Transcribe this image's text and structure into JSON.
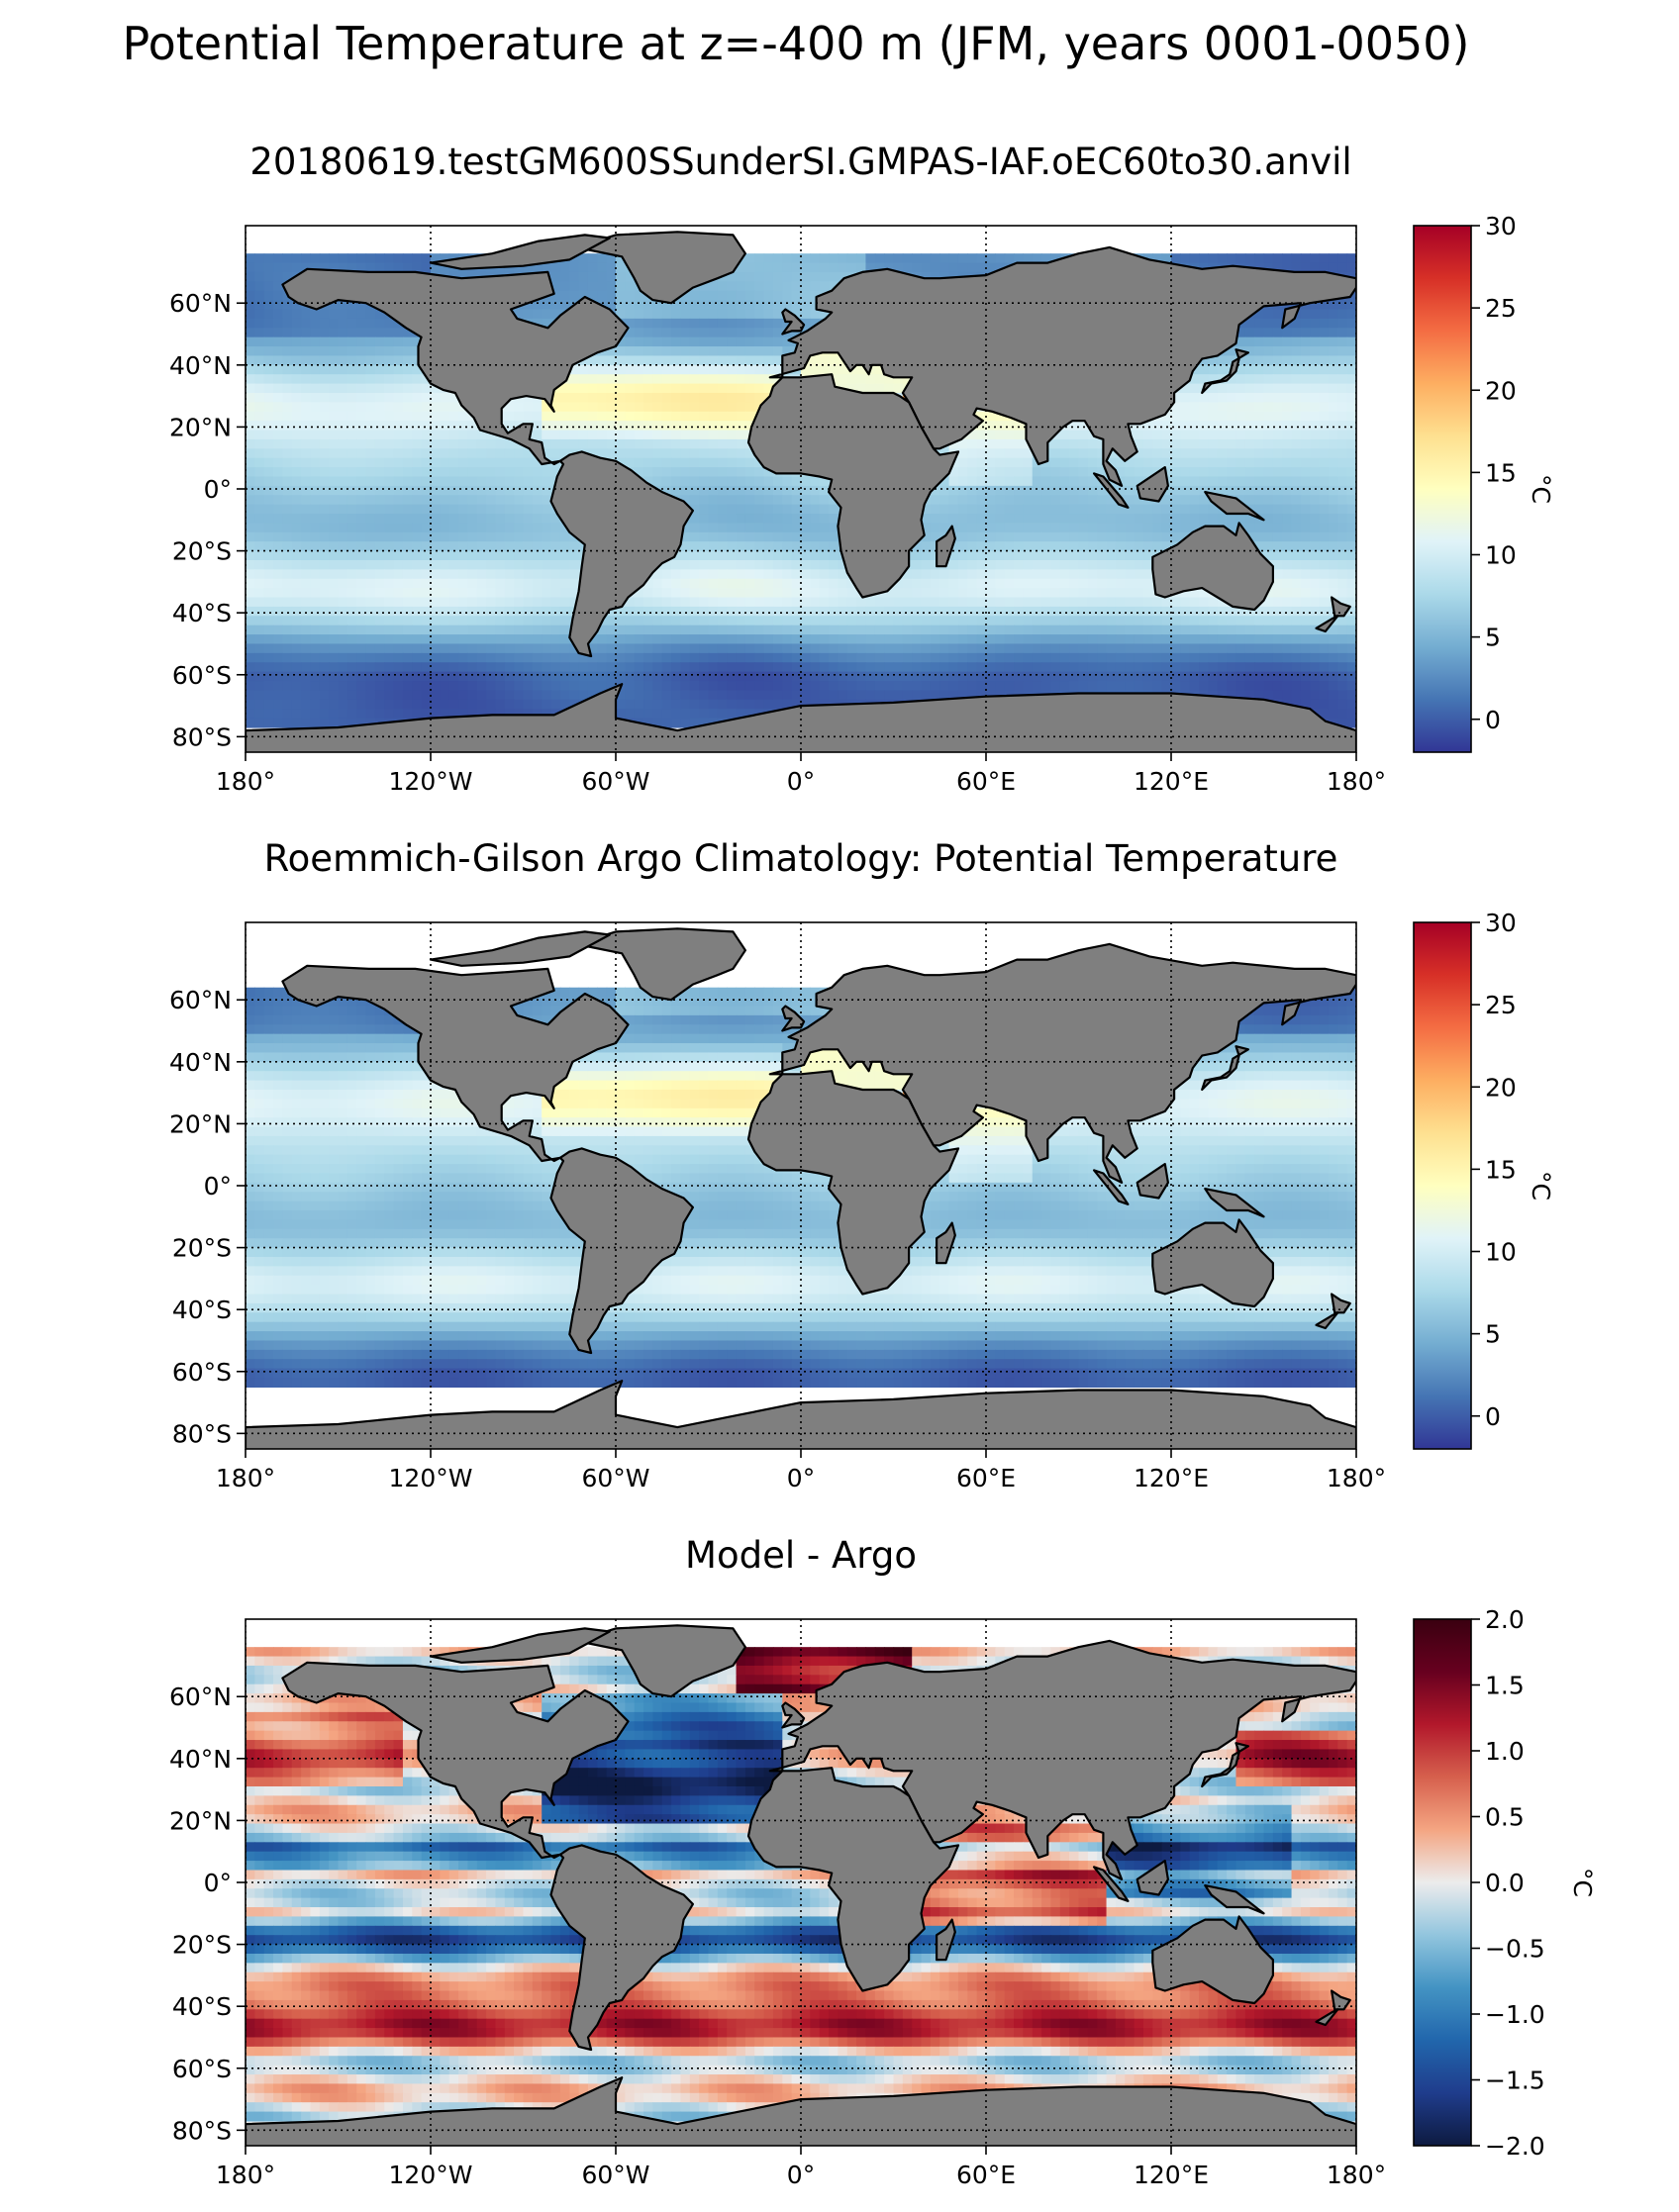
{
  "figure": {
    "suptitle": "Potential Temperature at z=-400 m (JFM, years 0001-0050)"
  },
  "colors": {
    "land": "#7f7f7f",
    "nodata": "#ffffff",
    "grid": "#000000",
    "coast": "#000000",
    "rdylbu_r": [
      "#313695",
      "#4575b4",
      "#74add1",
      "#abd9e9",
      "#e0f3f8",
      "#ffffbf",
      "#fee090",
      "#fdae61",
      "#f46d43",
      "#d73027",
      "#a50026"
    ],
    "rdbu_r": [
      "#0d1a40",
      "#1f3c8c",
      "#2166ac",
      "#4393c3",
      "#92c5de",
      "#ececec",
      "#f4a582",
      "#d6604d",
      "#b2182b",
      "#67001f",
      "#3a0010"
    ]
  },
  "chart_data": [
    {
      "type": "heatmap",
      "title": "20180619.testGM600SSunderSI.GMPAS-IAF.oEC60to30.anvil",
      "field": "model",
      "xlim": [
        -180,
        180
      ],
      "ylim": [
        -85,
        85
      ],
      "xticks": [
        -180,
        -120,
        -60,
        0,
        60,
        120,
        180
      ],
      "xticklabels": [
        "180°",
        "120°W",
        "60°W",
        "0°",
        "60°E",
        "120°E",
        "180°"
      ],
      "yticks": [
        60,
        40,
        20,
        0,
        -20,
        -40,
        -60,
        -80
      ],
      "yticklabels": [
        "60°N",
        "40°N",
        "20°N",
        "0°",
        "20°S",
        "40°S",
        "60°S",
        "80°S"
      ],
      "grid": true,
      "colorbar": {
        "label": "°C",
        "cmap": "rdylbu_r",
        "vmin": -2,
        "vmax": 30,
        "ticks": [
          0,
          5,
          10,
          15,
          20,
          25,
          30
        ],
        "ticklabels": [
          "0",
          "5",
          "10",
          "15",
          "20",
          "25",
          "30"
        ]
      }
    },
    {
      "type": "heatmap",
      "title": "Roemmich-Gilson Argo Climatology: Potential Temperature",
      "field": "obs",
      "xlim": [
        -180,
        180
      ],
      "ylim": [
        -85,
        85
      ],
      "xticks": [
        -180,
        -120,
        -60,
        0,
        60,
        120,
        180
      ],
      "xticklabels": [
        "180°",
        "120°W",
        "60°W",
        "0°",
        "60°E",
        "120°E",
        "180°"
      ],
      "yticks": [
        60,
        40,
        20,
        0,
        -20,
        -40,
        -60,
        -80
      ],
      "yticklabels": [
        "60°N",
        "40°N",
        "20°N",
        "0°",
        "20°S",
        "40°S",
        "60°S",
        "80°S"
      ],
      "grid": true,
      "obs_coverage_lat": [
        -65,
        65
      ],
      "colorbar": {
        "label": "°C",
        "cmap": "rdylbu_r",
        "vmin": -2,
        "vmax": 30,
        "ticks": [
          0,
          5,
          10,
          15,
          20,
          25,
          30
        ],
        "ticklabels": [
          "0",
          "5",
          "10",
          "15",
          "20",
          "25",
          "30"
        ]
      }
    },
    {
      "type": "heatmap",
      "title": "Model - Argo",
      "field": "bias",
      "xlim": [
        -180,
        180
      ],
      "ylim": [
        -85,
        85
      ],
      "xticks": [
        -180,
        -120,
        -60,
        0,
        60,
        120,
        180
      ],
      "xticklabels": [
        "180°",
        "120°W",
        "60°W",
        "0°",
        "60°E",
        "120°E",
        "180°"
      ],
      "yticks": [
        60,
        40,
        20,
        0,
        -20,
        -40,
        -60,
        -80
      ],
      "yticklabels": [
        "60°N",
        "40°N",
        "20°N",
        "0°",
        "20°S",
        "40°S",
        "60°S",
        "80°S"
      ],
      "grid": true,
      "colorbar": {
        "label": "°C",
        "cmap": "rdbu_r",
        "vmin": -2,
        "vmax": 2,
        "ticks": [
          2.0,
          1.5,
          1.0,
          0.5,
          0.0,
          -0.5,
          -1.0,
          -1.5,
          -2.0
        ],
        "ticklabels": [
          "2.0",
          "1.5",
          "1.0",
          "0.5",
          "0.0",
          "−0.5",
          "−1.0",
          "−1.5",
          "−2.0"
        ]
      }
    }
  ]
}
